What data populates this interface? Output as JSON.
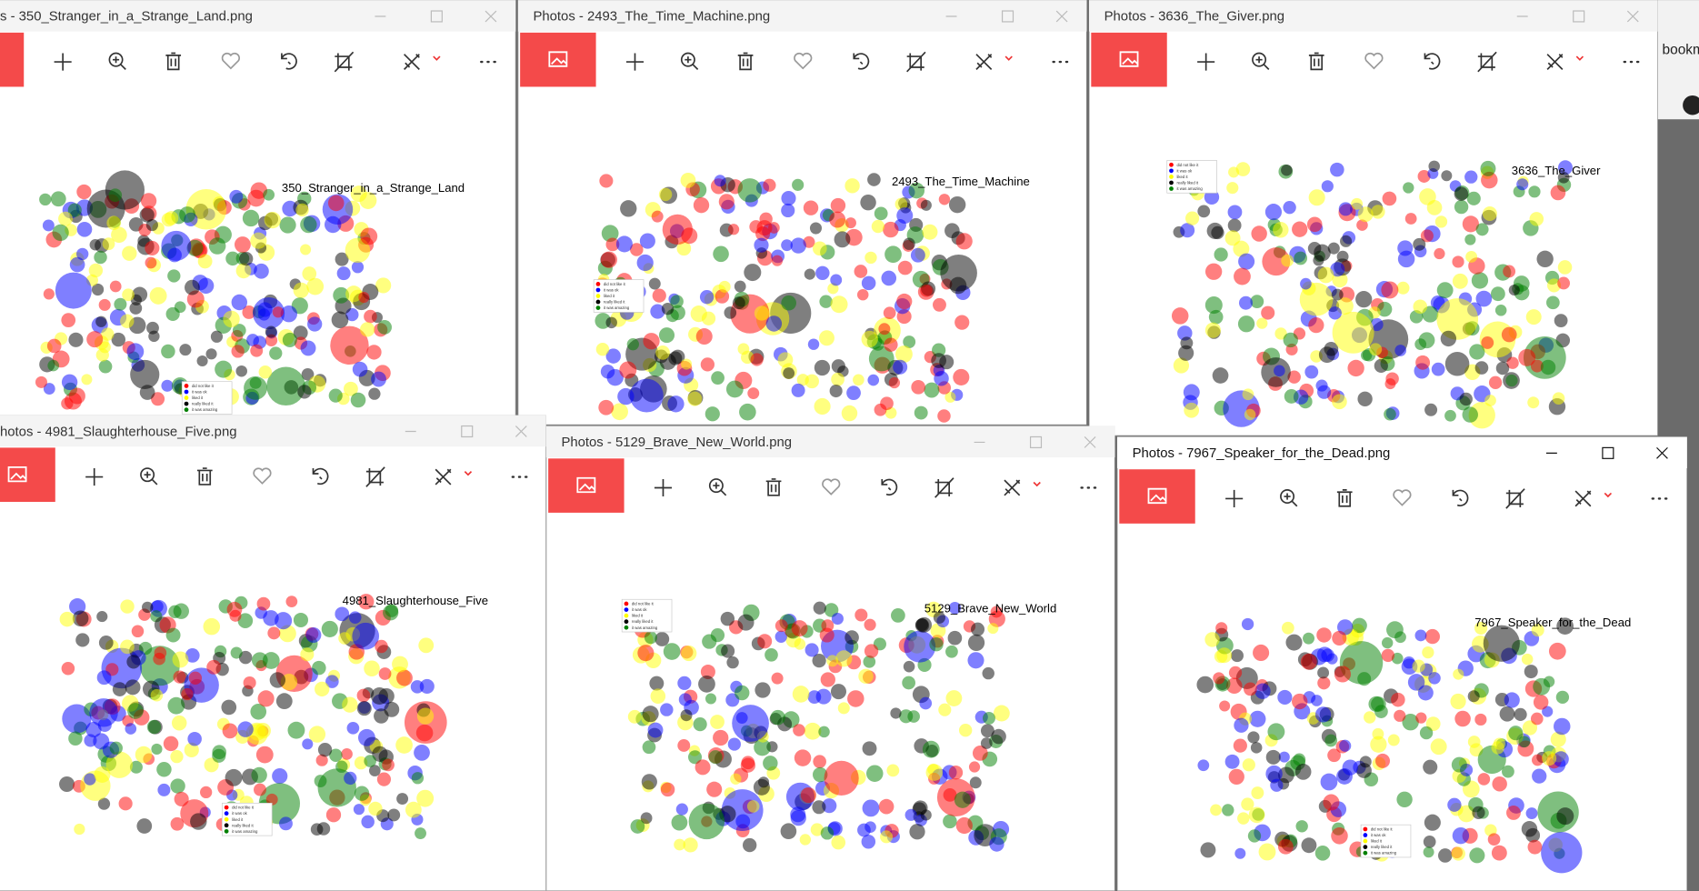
{
  "windows": [
    {
      "title": "s - 350_Stranger_in_a_Strange_Land.png",
      "chart_title": "350_Stranger_in_a_Strange_Land"
    },
    {
      "title": "Photos - 2493_The_Time_Machine.png",
      "chart_title": "2493_The_Time_Machine"
    },
    {
      "title": "Photos - 3636_The_Giver.png",
      "chart_title": "3636_The_Giver"
    },
    {
      "title": "hotos - 4981_Slaughterhouse_Five.png",
      "chart_title": "4981_Slaughterhouse_Five"
    },
    {
      "title": "Photos - 5129_Brave_New_World.png",
      "chart_title": "5129_Brave_New_World"
    },
    {
      "title": "Photos - 7967_Speaker_for_the_Dead.png",
      "chart_title": "7967_Speaker_for_the_Dead"
    }
  ],
  "legend": [
    {
      "label": "did not like it",
      "color": "#ff0000"
    },
    {
      "label": "it was ok",
      "color": "#0000ff"
    },
    {
      "label": "liked it",
      "color": "#ffff00"
    },
    {
      "label": "really liked it",
      "color": "#000000"
    },
    {
      "label": "it was amazing",
      "color": "#008000"
    }
  ],
  "side_text": "bookm"
}
